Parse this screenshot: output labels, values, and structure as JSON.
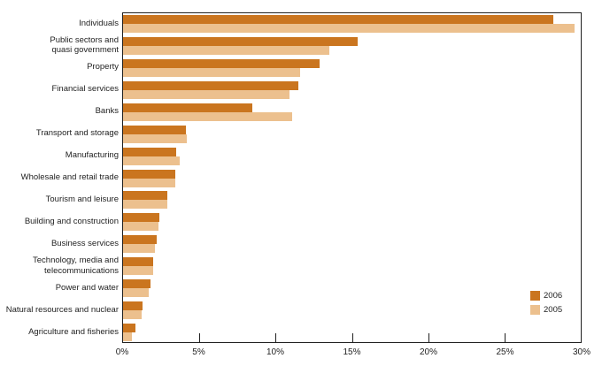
{
  "chart_data": {
    "type": "bar",
    "orientation": "horizontal",
    "title": "",
    "xlabel": "",
    "ylabel": "",
    "xlim": [
      0,
      30
    ],
    "x_tick_step": 5,
    "x_ticks": [
      "0%",
      "5%",
      "10%",
      "15%",
      "20%",
      "25%",
      "30%"
    ],
    "grid": false,
    "legend_position": "inside-right",
    "categories": [
      "Individuals",
      "Public sectors and quasi government",
      "Property",
      "Financial services",
      "Banks",
      "Transport and storage",
      "Manufacturing",
      "Wholesale and retail trade",
      "Tourism and leisure",
      "Building and construction",
      "Business services",
      "Technology, media and telecommunications",
      "Power and water",
      "Natural resources and nuclear",
      "Agriculture and fisheries"
    ],
    "category_lines": [
      [
        "Individuals"
      ],
      [
        "Public sectors and",
        "quasi government"
      ],
      [
        "Property"
      ],
      [
        "Financial services"
      ],
      [
        "Banks"
      ],
      [
        "Transport and storage"
      ],
      [
        "Manufacturing"
      ],
      [
        "Wholesale and retail trade"
      ],
      [
        "Tourism and leisure"
      ],
      [
        "Building and construction"
      ],
      [
        "Business services"
      ],
      [
        "Technology, media and",
        "telecommunications"
      ],
      [
        "Power and water"
      ],
      [
        "Natural resources and nuclear"
      ],
      [
        "Agriculture and fisheries"
      ]
    ],
    "series": [
      {
        "name": "2006",
        "color": "#ca751f",
        "values": [
          28.2,
          15.4,
          12.9,
          11.5,
          8.5,
          4.1,
          3.5,
          3.4,
          2.9,
          2.4,
          2.2,
          2.0,
          1.8,
          1.3,
          0.8
        ]
      },
      {
        "name": "2005",
        "color": "#ecc08e",
        "values": [
          29.6,
          13.5,
          11.6,
          10.9,
          11.1,
          4.2,
          3.7,
          3.4,
          2.9,
          2.3,
          2.1,
          2.0,
          1.7,
          1.2,
          0.6
        ]
      }
    ]
  }
}
